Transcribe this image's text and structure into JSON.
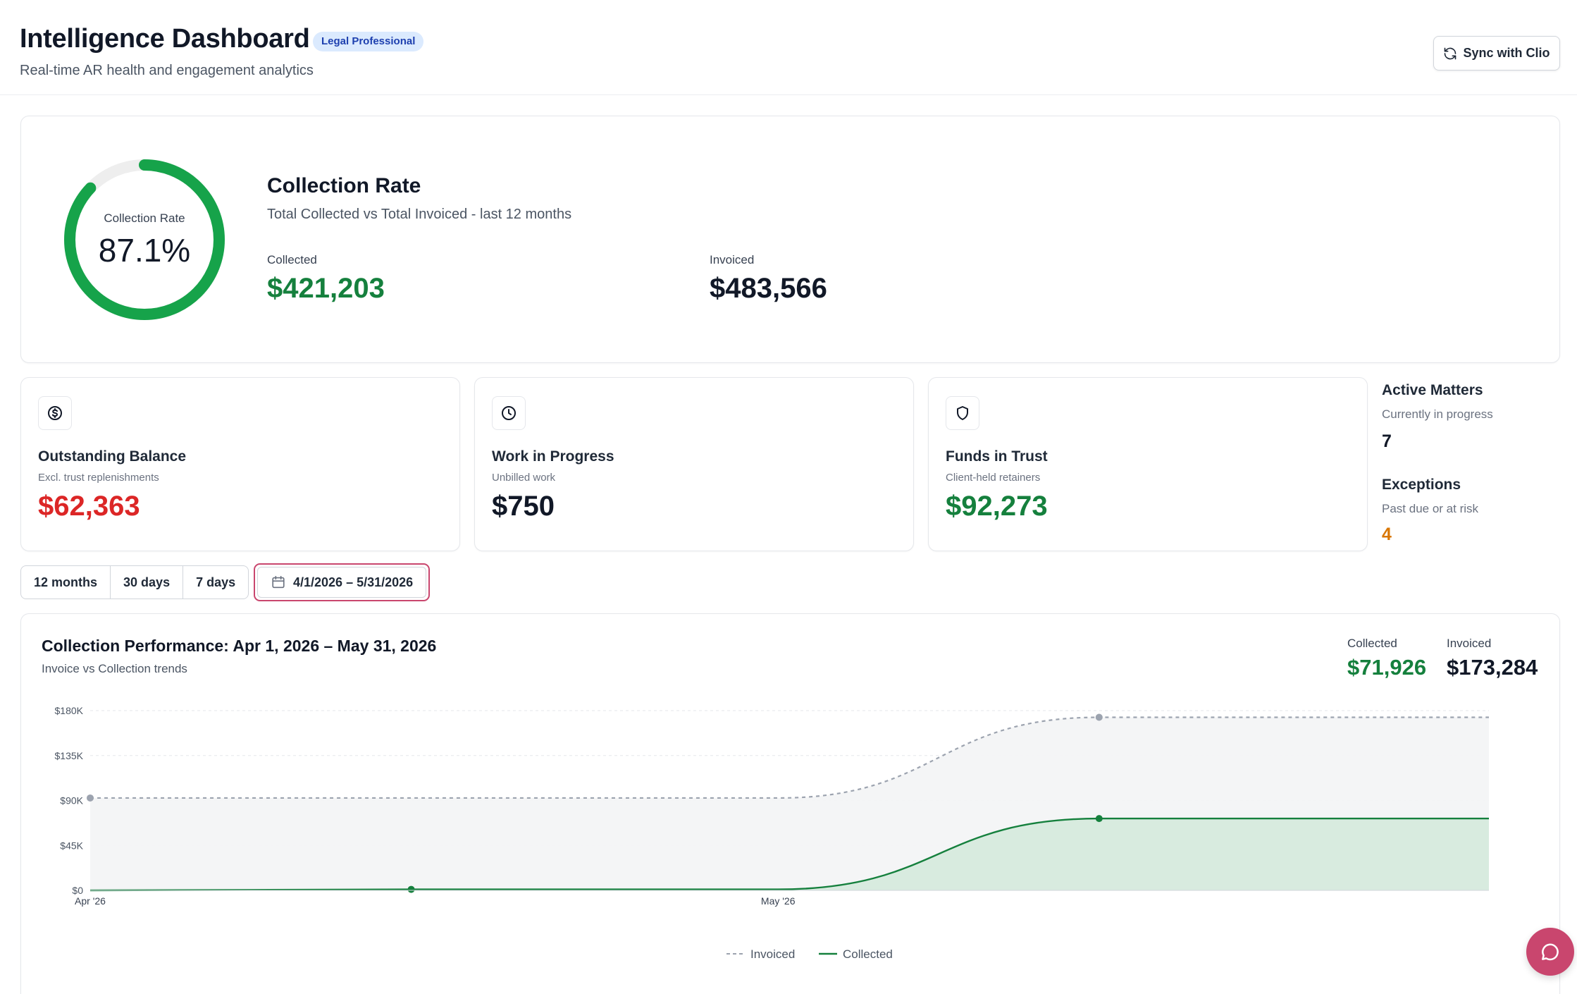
{
  "header": {
    "title": "Intelligence Dashboard",
    "badge": "Legal Professional",
    "subtitle": "Real-time AR health and engagement analytics",
    "sync_label": "Sync with Clio"
  },
  "collection_rate": {
    "donut_label": "Collection Rate",
    "rate_text": "87.1%",
    "rate_fraction": 0.871,
    "title": "Collection Rate",
    "subtitle": "Total Collected vs Total Invoiced - last 12 months",
    "collected_label": "Collected",
    "collected_value": "$421,203",
    "invoiced_label": "Invoiced",
    "invoiced_value": "$483,566"
  },
  "kpis": [
    {
      "title": "Outstanding Balance",
      "subtitle": "Excl. trust replenishments",
      "value": "$62,363",
      "icon": "dollar-circle-icon"
    },
    {
      "title": "Work in Progress",
      "subtitle": "Unbilled work",
      "value": "$750",
      "icon": "clock-icon"
    },
    {
      "title": "Funds in Trust",
      "subtitle": "Client-held retainers",
      "value": "$92,273",
      "icon": "shield-icon"
    }
  ],
  "side_stats": {
    "active_title": "Active Matters",
    "active_sub": "Currently in progress",
    "active_value": "7",
    "exceptions_title": "Exceptions",
    "exceptions_sub": "Past due or at risk",
    "exceptions_value": "4"
  },
  "range": {
    "options": [
      "12 months",
      "30 days",
      "7 days"
    ],
    "date_range": "4/1/2026 – 5/31/2026"
  },
  "colors": {
    "accent": "#c9466e",
    "green": "#15803d",
    "red": "#dc2626",
    "orange": "#d97706",
    "badge_bg": "#dbeafe"
  },
  "chart_data": {
    "type": "area",
    "title": "Collection Performance: Apr 1, 2026 – May 31, 2026",
    "subtitle": "Invoice vs Collection trends",
    "summary": {
      "collected_label": "Collected",
      "collected_value": "$71,926",
      "invoiced_label": "Invoiced",
      "invoiced_value": "$173,284"
    },
    "x_ticks": [
      "Apr '26",
      "May '26"
    ],
    "y_ticks": [
      "$0",
      "$45K",
      "$90K",
      "$135K",
      "$180K"
    ],
    "ylim": [
      0,
      180000
    ],
    "grid": true,
    "legend_position": "bottom-center",
    "series": [
      {
        "name": "Invoiced",
        "style": "dashed",
        "color": "#9ca3af",
        "points": [
          {
            "x": "2026-04-01",
            "y": 92500
          },
          {
            "x": "2026-05-01",
            "y": 92500
          },
          {
            "x": "2026-05-15",
            "y": 173284
          },
          {
            "x": "2026-06-01",
            "y": 173284
          }
        ]
      },
      {
        "name": "Collected",
        "style": "solid",
        "color": "#15803d",
        "points": [
          {
            "x": "2026-04-01",
            "y": 0
          },
          {
            "x": "2026-04-15",
            "y": 1000
          },
          {
            "x": "2026-05-01",
            "y": 1000
          },
          {
            "x": "2026-05-15",
            "y": 71926
          },
          {
            "x": "2026-06-01",
            "y": 71926
          }
        ]
      }
    ]
  }
}
